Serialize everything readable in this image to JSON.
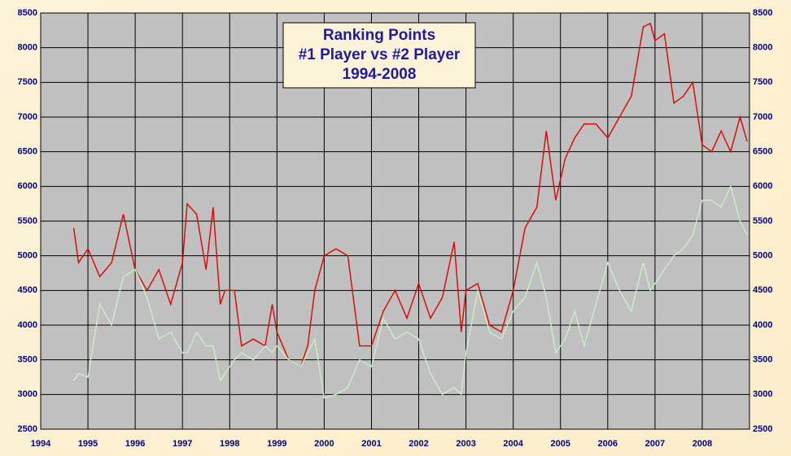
{
  "chart_data": {
    "type": "line",
    "title": "Ranking Points",
    "subtitle": "#1 Player vs #2 Player",
    "period": "1994-2008",
    "x": [
      1994.7,
      1994.8,
      1995.0,
      1995.25,
      1995.5,
      1995.75,
      1996.0,
      1996.25,
      1996.5,
      1996.75,
      1997.0,
      1997.1,
      1997.3,
      1997.5,
      1997.65,
      1997.8,
      1997.9,
      1998.1,
      1998.25,
      1998.5,
      1998.75,
      1998.9,
      1999.0,
      1999.25,
      1999.5,
      1999.65,
      1999.8,
      2000.0,
      2000.25,
      2000.5,
      2000.75,
      2001.0,
      2001.25,
      2001.5,
      2001.75,
      2002.0,
      2002.25,
      2002.5,
      2002.75,
      2002.9,
      2003.0,
      2003.25,
      2003.5,
      2003.75,
      2004.0,
      2004.25,
      2004.5,
      2004.7,
      2004.9,
      2005.1,
      2005.3,
      2005.5,
      2005.75,
      2006.0,
      2006.25,
      2006.5,
      2006.75,
      2006.9,
      2007.0,
      2007.2,
      2007.4,
      2007.6,
      2007.8,
      2008.0,
      2008.2,
      2008.4,
      2008.6,
      2008.8,
      2008.95
    ],
    "series": [
      {
        "color": "#e00000",
        "values": [
          5400,
          4900,
          5100,
          4700,
          4900,
          5600,
          4800,
          4500,
          4800,
          4300,
          4900,
          5750,
          5600,
          4800,
          5700,
          4300,
          4500,
          4500,
          3700,
          3800,
          3700,
          4300,
          3900,
          3500,
          3400,
          3700,
          4500,
          5000,
          5100,
          5000,
          3700,
          3700,
          4200,
          4500,
          4100,
          4600,
          4100,
          4400,
          5200,
          3900,
          4500,
          4600,
          4000,
          3900,
          4500,
          5400,
          5700,
          6800,
          5800,
          6400,
          6700,
          6900,
          6900,
          6700,
          7000,
          7300,
          8300,
          8350,
          8100,
          8200,
          7200,
          7300,
          7500,
          6600,
          6500,
          6800,
          6500,
          7000,
          6650
        ]
      },
      {
        "color": "#c8f0c8",
        "values": [
          3200,
          3300,
          3250,
          4300,
          4000,
          4700,
          4800,
          4400,
          3800,
          3900,
          3600,
          3600,
          3900,
          3700,
          3700,
          3200,
          3300,
          3500,
          3600,
          3500,
          3700,
          3600,
          3700,
          3500,
          3400,
          3600,
          3800,
          2950,
          3000,
          3100,
          3500,
          3400,
          4100,
          3800,
          3900,
          3800,
          3300,
          3000,
          3100,
          3000,
          3600,
          4500,
          3900,
          3800,
          4200,
          4400,
          4900,
          4400,
          3600,
          3800,
          4200,
          3700,
          4300,
          4900,
          4500,
          4200,
          4900,
          4500,
          4600,
          4800,
          5000,
          5100,
          5300,
          5800,
          5800,
          5700,
          6000,
          5500,
          5300
        ]
      }
    ],
    "xlim": [
      1994,
      2009
    ],
    "xticks": [
      1994,
      1995,
      1996,
      1997,
      1998,
      1999,
      2000,
      2001,
      2002,
      2003,
      2004,
      2005,
      2006,
      2007,
      2008
    ],
    "ylim": [
      2500,
      8500
    ],
    "yticks": [
      2500,
      3000,
      3500,
      4000,
      4500,
      5000,
      5500,
      6000,
      6500,
      7000,
      7500,
      8000,
      8500
    ],
    "grid": true
  }
}
